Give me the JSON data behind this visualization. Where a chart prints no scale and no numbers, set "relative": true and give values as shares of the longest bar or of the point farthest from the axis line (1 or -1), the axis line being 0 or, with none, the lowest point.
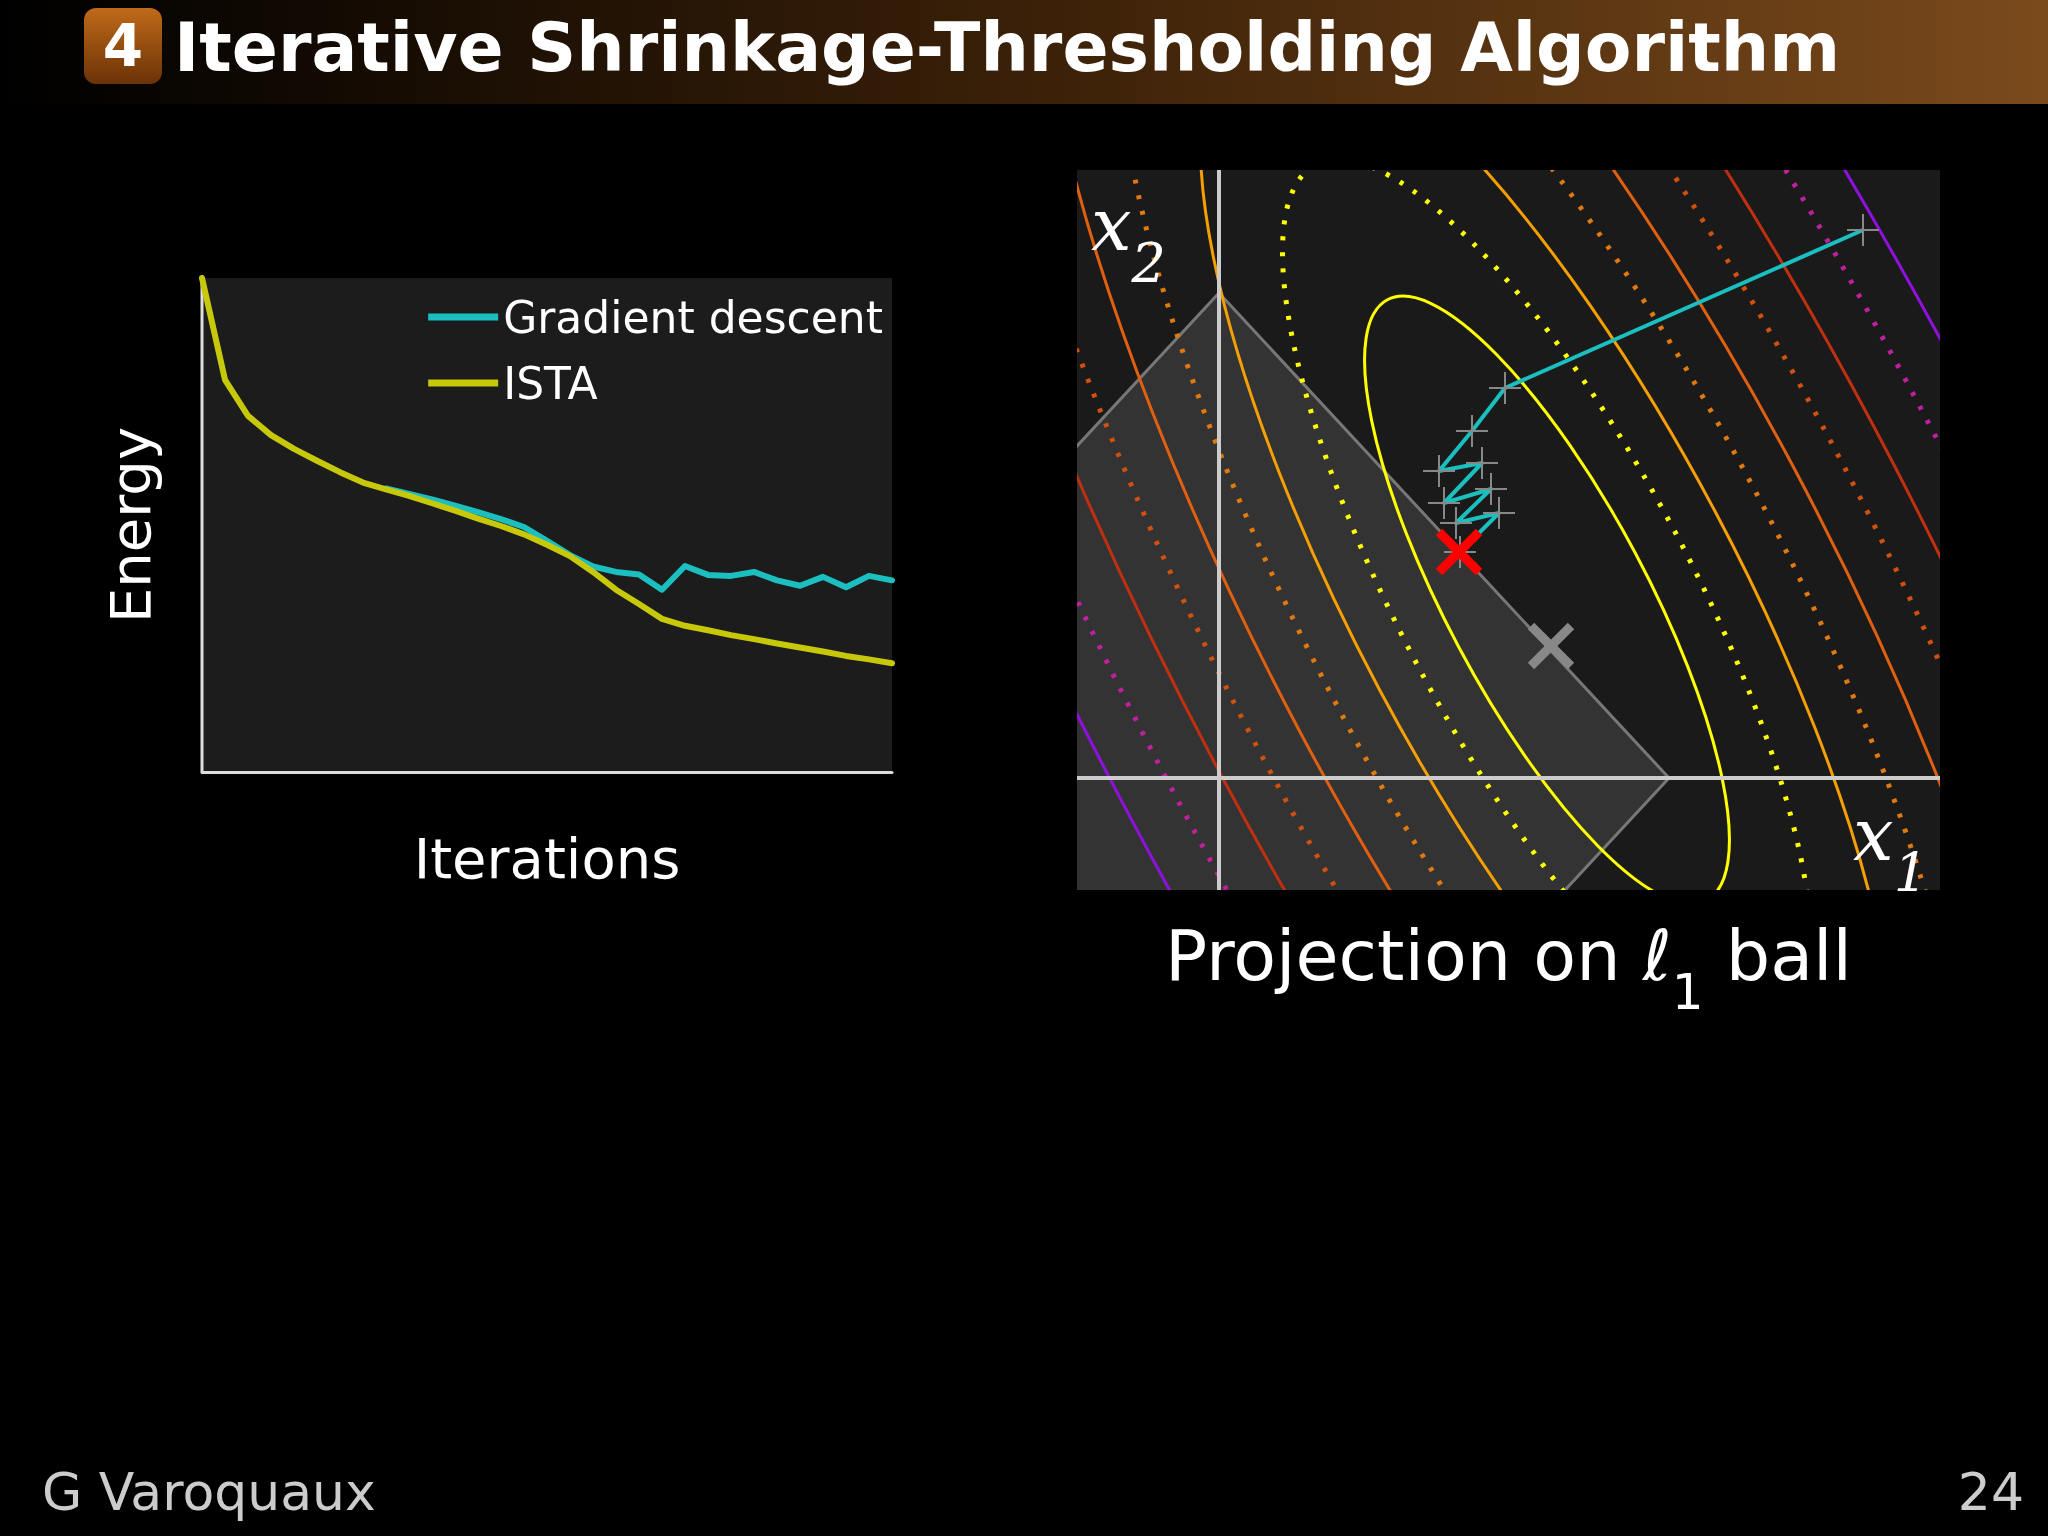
{
  "chart_data": [
    {
      "type": "line",
      "title": "Iterative Shrinkage-Thresholding Algorithm",
      "xlabel": "Iterations",
      "ylabel": "Energy",
      "relative": true,
      "legend": "top right",
      "annotations": [
        "4",
        "G Varoquaux",
        "24"
      ],
      "categories": [
        null,
        null,
        null,
        null,
        null,
        null,
        null,
        null,
        null,
        null,
        null,
        null,
        null,
        null,
        null,
        null,
        null,
        null,
        null,
        null,
        null,
        null,
        null,
        null,
        null,
        null,
        null,
        null,
        null,
        null,
        null
      ],
      "series": [
        {
          "name": "Gradient descent",
          "color": "#1bbfbf",
          "values": [
            null,
            null,
            null,
            null,
            null,
            null,
            null,
            null,
            0.574,
            0.563,
            0.552,
            0.539,
            0.526,
            0.512,
            0.496,
            0.468,
            0.439,
            0.416,
            0.405,
            0.4,
            0.369,
            0.417,
            0.399,
            0.397,
            0.405,
            0.388,
            0.377,
            0.395,
            0.374,
            0.397,
            0.388
          ]
        },
        {
          "name": "ISTA",
          "color": "#c8c80a",
          "values": [
            1.0,
            0.794,
            0.721,
            0.682,
            0.654,
            0.63,
            0.607,
            0.586,
            0.572,
            0.559,
            0.544,
            0.529,
            0.513,
            0.498,
            0.481,
            0.46,
            0.437,
            0.405,
            0.369,
            0.34,
            0.31,
            0.296,
            0.287,
            0.277,
            0.269,
            0.26,
            0.252,
            0.244,
            0.235,
            0.228,
            0.22
          ]
        }
      ]
    },
    {
      "type": "other",
      "title": "Projection on ℓ$_{1}$ ball",
      "xlabel": "x$_{1}$",
      "ylabel": "x$_{2}$"
    }
  ]
}
